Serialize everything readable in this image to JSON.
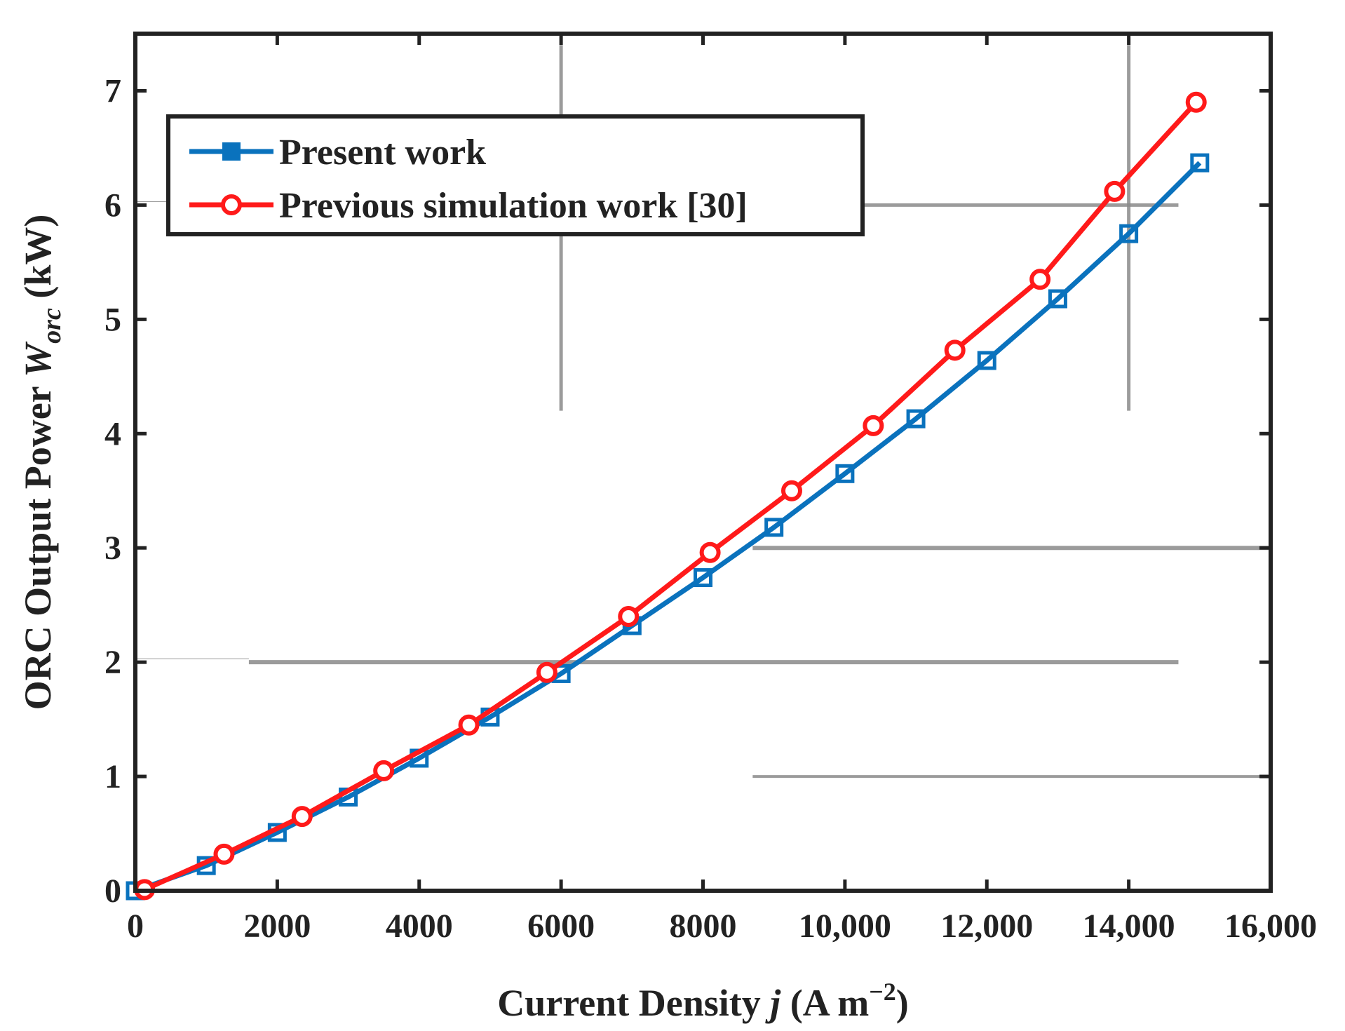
{
  "chart_data": {
    "type": "line",
    "title": "",
    "xlabel": {
      "prefix": "Current Density ",
      "italic": "j",
      "suffix": " (A m",
      "superscript": "−2",
      "close": ")"
    },
    "ylabel": {
      "prefix": "ORC Output Power ",
      "italic": "W",
      "subscript": "orc",
      "suffix": " (kW)"
    },
    "xlim": [
      0,
      16000
    ],
    "ylim": [
      0,
      7.5
    ],
    "xticks": [
      0,
      2000,
      4000,
      6000,
      8000,
      10000,
      12000,
      14000,
      16000
    ],
    "xtick_labels": [
      "0",
      "2000",
      "4000",
      "6000",
      "8000",
      "10,000",
      "12,000",
      "14,000",
      "16,000"
    ],
    "yticks": [
      0,
      1,
      2,
      3,
      4,
      5,
      6,
      7
    ],
    "ytick_labels": [
      "0",
      "1",
      "2",
      "3",
      "4",
      "5",
      "6",
      "7"
    ],
    "grid": false,
    "legend_position": "top-left",
    "series": [
      {
        "name": "Present work",
        "color": "#0a72bd",
        "marker": "square",
        "x": [
          0,
          1000,
          2000,
          3000,
          4000,
          5000,
          6000,
          7000,
          8000,
          9000,
          10000,
          11000,
          12000,
          13000,
          14000,
          15000
        ],
        "y": [
          0,
          0.22,
          0.51,
          0.82,
          1.16,
          1.52,
          1.9,
          2.32,
          2.74,
          3.18,
          3.65,
          4.13,
          4.64,
          5.18,
          5.75,
          6.37
        ]
      },
      {
        "name": "Previous simulation work [30]",
        "color": "#ff1a1a",
        "marker": "circle",
        "x": [
          130,
          1250,
          2350,
          3500,
          4700,
          5800,
          6950,
          8100,
          9250,
          10400,
          11550,
          12750,
          13800,
          14950
        ],
        "y": [
          0.01,
          0.32,
          0.65,
          1.05,
          1.45,
          1.91,
          2.4,
          2.96,
          3.5,
          4.07,
          4.73,
          5.35,
          6.12,
          6.9
        ]
      }
    ]
  }
}
